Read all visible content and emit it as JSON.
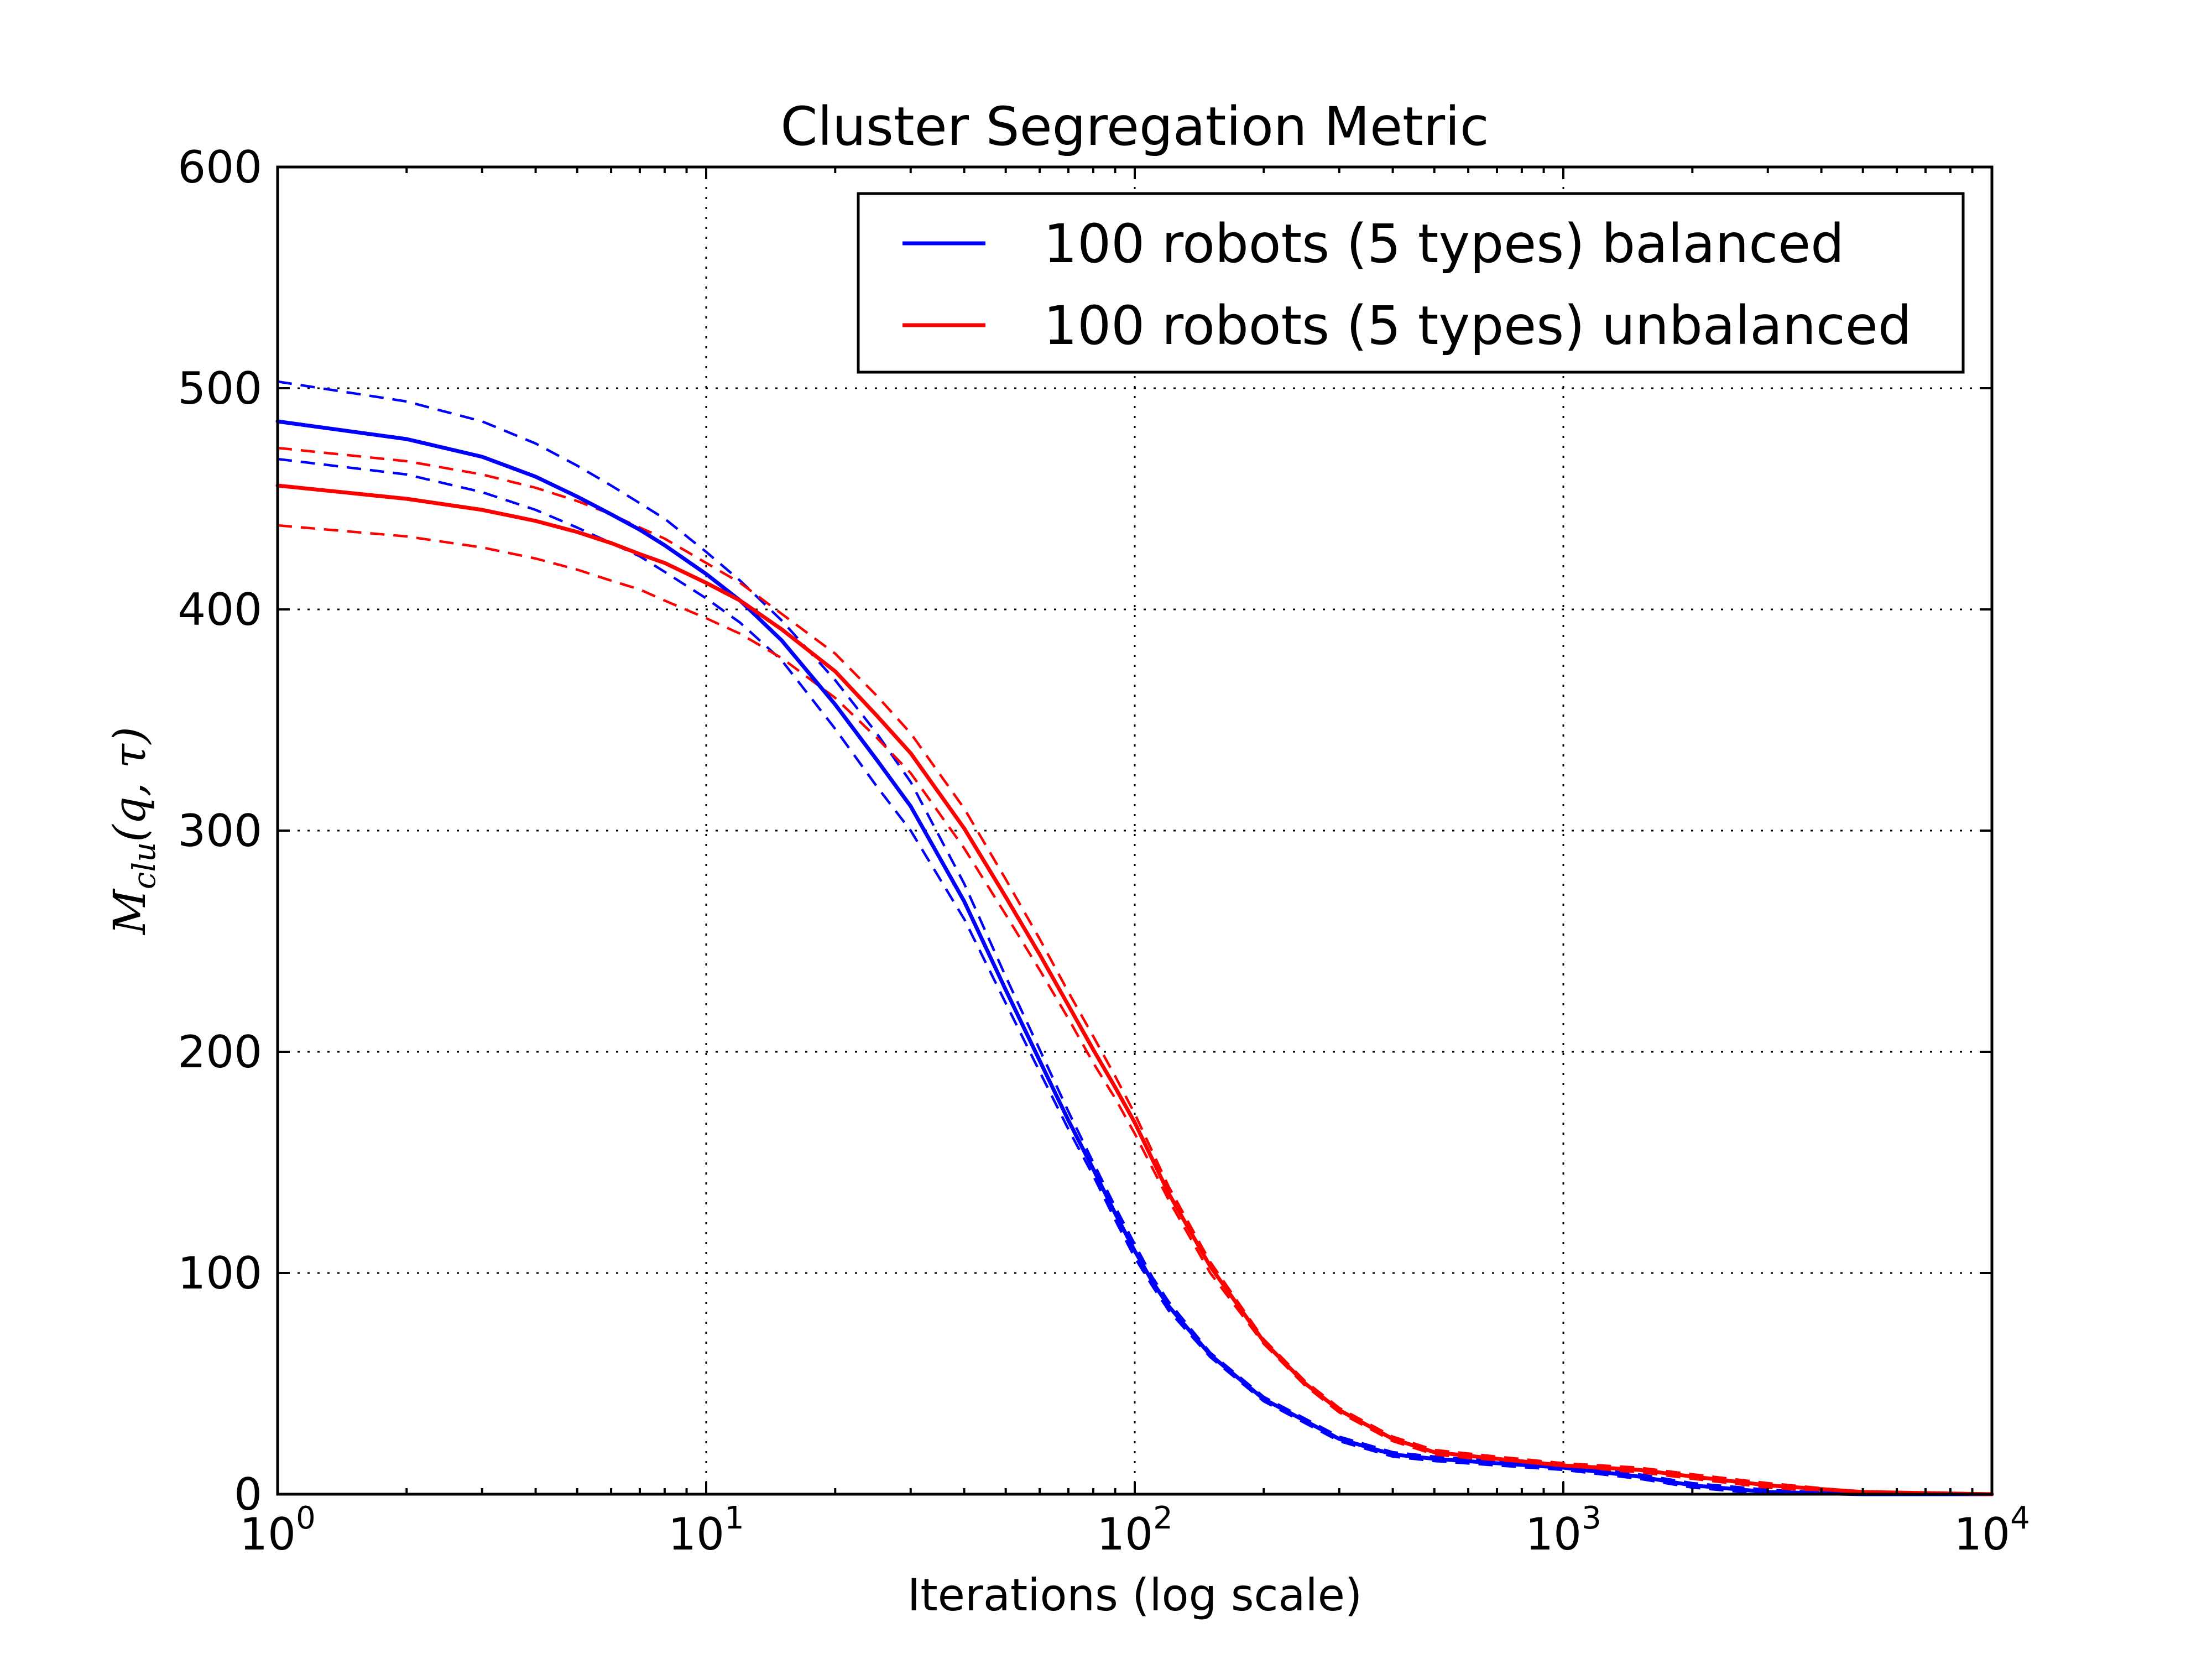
{
  "chart_data": {
    "type": "line",
    "title": "Cluster Segregation Metric",
    "xlabel": "Iterations (log scale)",
    "ylabel": {
      "base": "M",
      "sub": "clu",
      "args": "(q, τ)"
    },
    "xscale": "log",
    "xlim": [
      1,
      10000
    ],
    "ylim": [
      0,
      600
    ],
    "x_ticks": [
      {
        "value": 1,
        "base": "10",
        "exp": "0"
      },
      {
        "value": 10,
        "base": "10",
        "exp": "1"
      },
      {
        "value": 100,
        "base": "10",
        "exp": "2"
      },
      {
        "value": 1000,
        "base": "10",
        "exp": "3"
      },
      {
        "value": 10000,
        "base": "10",
        "exp": "4"
      }
    ],
    "y_ticks": [
      0,
      100,
      200,
      300,
      400,
      500,
      600
    ],
    "grid": true,
    "legend_position": "top-right",
    "colors": {
      "balanced": "#0000ff",
      "unbalanced": "#ff0000"
    },
    "series": [
      {
        "name": "100 robots (5 types) balanced",
        "color": "#0000ff",
        "style": "solid",
        "x": [
          1,
          2,
          3,
          4,
          5,
          6,
          7,
          8,
          10,
          12,
          15,
          20,
          25,
          30,
          40,
          50,
          60,
          70,
          80,
          90,
          100,
          110,
          120,
          150,
          200,
          300,
          400,
          500,
          700,
          1000,
          1500,
          2000,
          3000,
          5000,
          10000
        ],
        "y": [
          485,
          477,
          469,
          460,
          451,
          443,
          436,
          429,
          416,
          404,
          386,
          357,
          332,
          311,
          268,
          228,
          196,
          169,
          147,
          127,
          110,
          96,
          85,
          63,
          43,
          25,
          18,
          16,
          14,
          12,
          8,
          4,
          1,
          0,
          0
        ]
      },
      {
        "name": "100 robots (5 types) unbalanced",
        "color": "#ff0000",
        "style": "solid",
        "x": [
          1,
          2,
          3,
          4,
          5,
          6,
          7,
          8,
          10,
          12,
          15,
          20,
          25,
          30,
          40,
          50,
          60,
          70,
          80,
          90,
          100,
          120,
          150,
          200,
          250,
          300,
          400,
          500,
          700,
          1000,
          1500,
          2000,
          3000,
          5000,
          10000
        ],
        "y": [
          456,
          450,
          445,
          440,
          435,
          430,
          425,
          421,
          412,
          404,
          391,
          372,
          352,
          335,
          301,
          270,
          244,
          221,
          201,
          184,
          168,
          136,
          103,
          69,
          50,
          38,
          25,
          19,
          16,
          13,
          11,
          8,
          4,
          1,
          0
        ]
      },
      {
        "name": "",
        "color": "#0000ff",
        "style": "dashed",
        "x": [
          1,
          2,
          3,
          4,
          5,
          6,
          7,
          8,
          10,
          12,
          15,
          20,
          25,
          30,
          40,
          50,
          60,
          70,
          80,
          90,
          100,
          110,
          120,
          150,
          200,
          300,
          400,
          500,
          700,
          1000,
          1500,
          2000,
          3000,
          5000,
          10000
        ],
        "y": [
          503,
          494,
          485,
          475,
          465,
          456,
          448,
          441,
          426,
          413,
          395,
          368,
          344,
          322,
          276,
          234,
          201,
          173,
          150,
          130,
          113,
          98,
          87,
          64,
          44,
          26,
          19,
          17,
          15,
          13,
          9,
          5,
          2,
          0,
          0
        ]
      },
      {
        "name": "",
        "color": "#0000ff",
        "style": "dashed",
        "x": [
          1,
          2,
          3,
          4,
          5,
          6,
          7,
          8,
          10,
          12,
          15,
          20,
          25,
          30,
          40,
          50,
          60,
          70,
          80,
          90,
          100,
          110,
          120,
          150,
          200,
          300,
          400,
          500,
          700,
          1000,
          1500,
          2000,
          3000,
          5000,
          10000
        ],
        "y": [
          468,
          461,
          453,
          445,
          437,
          430,
          424,
          417,
          405,
          394,
          377,
          346,
          320,
          300,
          260,
          222,
          191,
          165,
          144,
          124,
          107,
          94,
          83,
          62,
          42,
          24,
          17,
          15,
          13,
          11,
          7,
          3,
          0,
          0,
          0
        ]
      },
      {
        "name": "",
        "color": "#ff0000",
        "style": "dashed",
        "x": [
          1,
          2,
          3,
          4,
          5,
          6,
          7,
          8,
          10,
          12,
          15,
          20,
          25,
          30,
          40,
          50,
          60,
          70,
          80,
          90,
          100,
          120,
          150,
          200,
          250,
          300,
          400,
          500,
          700,
          1000,
          1500,
          2000,
          3000,
          5000,
          10000
        ],
        "y": [
          473,
          467,
          461,
          455,
          449,
          443,
          437,
          432,
          421,
          412,
          398,
          380,
          361,
          344,
          310,
          278,
          251,
          227,
          207,
          189,
          172,
          139,
          105,
          70,
          51,
          39,
          26,
          20,
          17,
          14,
          12,
          9,
          5,
          1,
          0
        ]
      },
      {
        "name": "",
        "color": "#ff0000",
        "style": "dashed",
        "x": [
          1,
          2,
          3,
          4,
          5,
          6,
          7,
          8,
          10,
          12,
          15,
          20,
          25,
          30,
          40,
          50,
          60,
          70,
          80,
          90,
          100,
          120,
          150,
          200,
          250,
          300,
          400,
          500,
          700,
          1000,
          1500,
          2000,
          3000,
          5000,
          10000
        ],
        "y": [
          438,
          433,
          428,
          423,
          418,
          413,
          409,
          404,
          396,
          389,
          378,
          360,
          342,
          326,
          292,
          262,
          237,
          215,
          195,
          179,
          163,
          133,
          100,
          68,
          49,
          37,
          24,
          18,
          15,
          12,
          10,
          7,
          3,
          0,
          0
        ]
      }
    ]
  }
}
